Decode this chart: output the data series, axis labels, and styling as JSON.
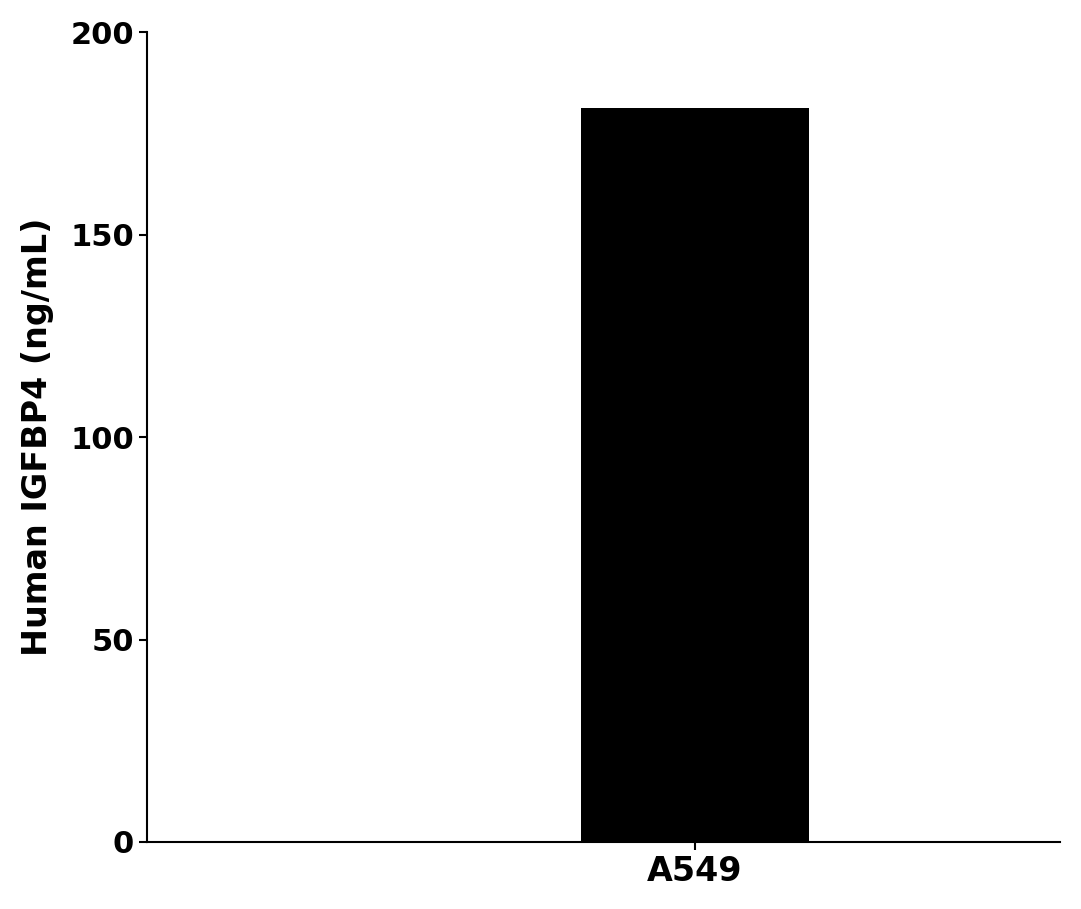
{
  "categories": [
    "A549"
  ],
  "values": [
    181.3
  ],
  "bar_color": "#000000",
  "bar_width": 0.5,
  "ylabel": "Human IGFBP4 (ng/mL)",
  "ylim": [
    0,
    200
  ],
  "yticks": [
    0,
    50,
    100,
    150,
    200
  ],
  "background_color": "#ffffff",
  "ylabel_fontsize": 24,
  "tick_fontsize": 22,
  "xtick_fontsize": 24,
  "xlim": [
    -1.2,
    0.8
  ]
}
